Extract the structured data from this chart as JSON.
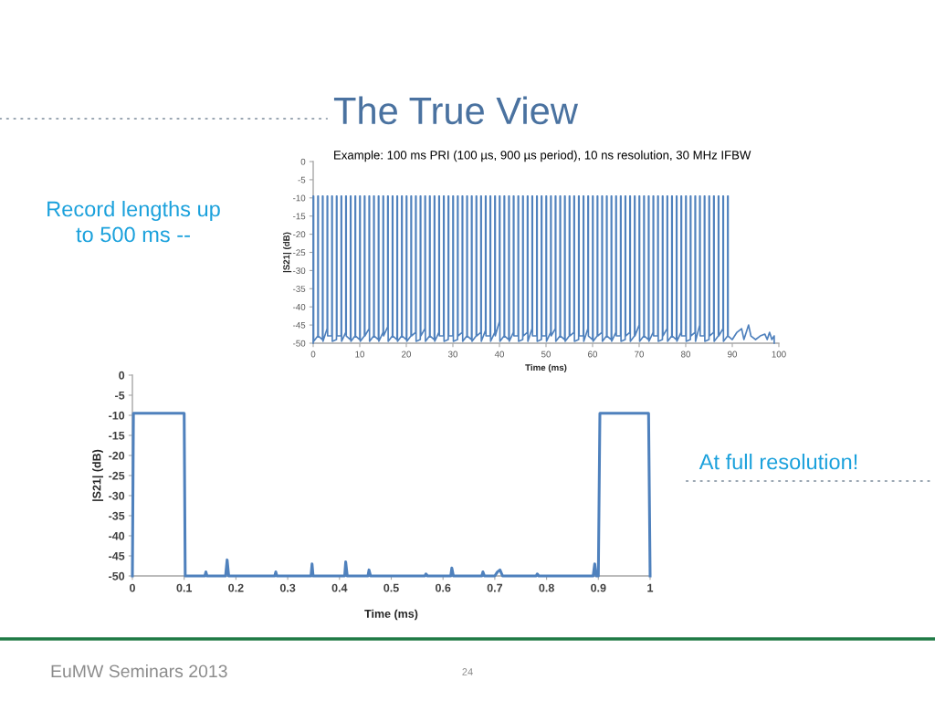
{
  "chart_data": [
    {
      "type": "line",
      "title": "The True View",
      "subtitle": "Example: 100 ms PRI (100 µs, 900 µs period), 10 ns resolution, 30 MHz IFBW",
      "xlabel": "Time (ms)",
      "ylabel": "|S21| (dB)",
      "annotations": [
        "Record lengths up\nto 500 ms --"
      ],
      "xlim": [
        0,
        100
      ],
      "xticks": [
        0,
        10,
        20,
        30,
        40,
        50,
        60,
        70,
        80,
        90,
        100
      ],
      "ylim": [
        -50,
        0
      ],
      "yticks": [
        0,
        -5,
        -10,
        -15,
        -20,
        -25,
        -30,
        -35,
        -40,
        -45,
        -50
      ],
      "grid": false,
      "marker": "none",
      "line_style": "solid",
      "series": [
        {
          "color": "#4f81bd",
          "x": [
            0,
            0,
            0.1,
            0.1,
            1,
            1,
            1.1,
            1.1,
            2,
            2,
            2.1,
            2.1,
            3,
            3,
            3.1,
            3.1,
            4,
            4,
            4.1,
            4.1,
            5,
            5,
            5.1,
            5.1,
            6,
            6,
            6.1,
            6.1,
            7,
            7,
            7.1,
            7.1,
            8,
            8,
            8.1,
            8.1,
            9,
            9,
            9.1,
            9.1,
            10,
            10,
            10.1,
            10.1,
            11,
            11,
            11.1,
            11.1,
            12,
            12,
            12.1,
            12.1,
            13,
            13,
            13.1,
            13.1,
            14,
            14,
            14.1,
            14.1,
            15,
            15,
            15.1,
            15.1,
            16,
            16,
            16.1,
            16.1,
            17,
            17,
            17.1,
            17.1,
            18,
            18,
            18.1,
            18.1,
            19,
            19,
            19.1,
            19.1,
            20,
            20,
            20.1,
            20.1,
            21,
            21,
            21.1,
            21.1,
            22,
            22,
            22.1,
            22.1,
            23,
            23,
            23.1,
            23.1,
            24,
            24,
            24.1,
            24.1,
            25,
            25,
            25.1,
            25.1,
            26,
            26,
            26.1,
            26.1,
            27,
            27,
            27.1,
            27.1,
            28,
            28,
            28.1,
            28.1,
            29,
            29,
            29.1,
            29.1,
            30,
            30,
            30.1,
            30.1,
            31,
            31,
            31.1,
            31.1,
            32,
            32,
            32.1,
            32.1,
            33,
            33,
            33.1,
            33.1,
            34,
            34,
            34.1,
            34.1,
            35,
            35,
            35.1,
            35.1,
            36,
            36,
            36.1,
            36.1,
            37,
            37,
            37.1,
            37.1,
            38,
            38,
            38.1,
            38.1,
            39,
            39,
            39.1,
            39.1,
            40,
            40,
            40.1,
            40.1,
            41,
            41,
            41.1,
            41.1,
            42,
            42,
            42.1,
            42.1,
            43,
            43,
            43.1,
            43.1,
            44,
            44,
            44.1,
            44.1,
            45,
            45,
            45.1,
            45.1,
            46,
            46,
            46.1,
            46.1,
            47,
            47,
            47.1,
            47.1,
            48,
            48,
            48.1,
            48.1,
            49,
            49,
            49.1,
            49.1,
            50,
            50,
            50.1,
            50.1,
            51,
            51,
            51.1,
            51.1,
            52,
            52,
            52.1,
            52.1,
            53,
            53,
            53.1,
            53.1,
            54,
            54,
            54.1,
            54.1,
            55,
            55,
            55.1,
            55.1,
            56,
            56,
            56.1,
            56.1,
            57,
            57,
            57.1,
            57.1,
            58,
            58,
            58.1,
            58.1,
            59,
            59,
            59.1,
            59.1,
            60,
            60,
            60.1,
            60.1,
            61,
            61,
            61.1,
            61.1,
            62,
            62,
            62.1,
            62.1,
            63,
            63,
            63.1,
            63.1,
            64,
            64,
            64.1,
            64.1,
            65,
            65,
            65.1,
            65.1,
            66,
            66,
            66.1,
            66.1,
            67,
            67,
            67.1,
            67.1,
            68,
            68,
            68.1,
            68.1,
            69,
            69,
            69.1,
            69.1,
            70,
            70,
            70.1,
            70.1,
            71,
            71,
            71.1,
            71.1,
            72,
            72,
            72.1,
            72.1,
            73,
            73,
            73.1,
            73.1,
            74,
            74,
            74.1,
            74.1,
            75,
            75,
            75.1,
            75.1,
            76,
            76,
            76.1,
            76.1,
            77,
            77,
            77.1,
            77.1,
            78,
            78,
            78.1,
            78.1,
            79,
            79,
            79.1,
            79.1,
            80,
            80,
            80.1,
            80.1,
            81,
            81,
            81.1,
            81.1,
            82,
            82,
            82.1,
            82.1,
            83,
            83,
            83.1,
            83.1,
            84,
            84,
            84.1,
            84.1,
            85,
            85,
            85.1,
            85.1,
            86,
            86,
            86.1,
            86.1,
            87,
            87,
            87.1,
            87.1,
            88,
            88,
            88.1,
            88.1,
            89,
            89,
            89.1,
            89.1,
            90,
            91,
            92,
            92.5,
            93.5,
            94,
            95,
            96,
            97,
            97.5,
            98,
            98.5,
            99,
            99
          ],
          "values": [
            -50,
            -9.5,
            -9.5,
            -49.5,
            -48,
            -9.5,
            -9.5,
            -48,
            -49,
            -9.5,
            -9.5,
            -49.5,
            -46,
            -9.5,
            -9.5,
            -48,
            -48,
            -9.5,
            -9.5,
            -49.5,
            -49,
            -9.5,
            -9.5,
            -48,
            -48,
            -9.5,
            -9.5,
            -49.5,
            -47,
            -9.5,
            -9.5,
            -48,
            -49,
            -9.5,
            -9.5,
            -49.5,
            -48,
            -9.5,
            -9.5,
            -48,
            -49,
            -9.5,
            -9.5,
            -49.5,
            -48,
            -9.5,
            -9.5,
            -48,
            -46,
            -9.5,
            -9.5,
            -49.5,
            -48,
            -9.5,
            -9.5,
            -48,
            -49,
            -9.5,
            -9.5,
            -49.5,
            -47,
            -9.5,
            -9.5,
            -48,
            -45.5,
            -9.5,
            -9.5,
            -49.5,
            -48,
            -9.5,
            -9.5,
            -48,
            -49,
            -9.5,
            -9.5,
            -49.5,
            -48,
            -9.5,
            -9.5,
            -48,
            -49,
            -9.5,
            -9.5,
            -49.5,
            -48,
            -9.5,
            -9.5,
            -48,
            -47,
            -9.5,
            -9.5,
            -49.5,
            -49,
            -9.5,
            -9.5,
            -48,
            -46,
            -9.5,
            -9.5,
            -49.5,
            -48,
            -9.5,
            -9.5,
            -48,
            -49,
            -9.5,
            -9.5,
            -49.5,
            -47,
            -9.5,
            -9.5,
            -48,
            -48,
            -9.5,
            -9.5,
            -49.5,
            -49,
            -9.5,
            -9.5,
            -48,
            -48,
            -9.5,
            -9.5,
            -49.5,
            -49,
            -9.5,
            -9.5,
            -48,
            -47,
            -9.5,
            -9.5,
            -49.5,
            -48,
            -9.5,
            -9.5,
            -48,
            -49,
            -9.5,
            -9.5,
            -49.5,
            -48,
            -9.5,
            -9.5,
            -48,
            -47,
            -9.5,
            -9.5,
            -49.5,
            -46.5,
            -9.5,
            -9.5,
            -48,
            -48,
            -9.5,
            -9.5,
            -49.5,
            -47,
            -9.5,
            -9.5,
            -48,
            -44,
            -9.5,
            -9.5,
            -49.5,
            -48,
            -9.5,
            -9.5,
            -48,
            -49,
            -9.5,
            -9.5,
            -49.5,
            -47,
            -9.5,
            -9.5,
            -48,
            -48,
            -9.5,
            -9.5,
            -49.5,
            -49,
            -9.5,
            -9.5,
            -48,
            -47,
            -9.5,
            -9.5,
            -49.5,
            -46,
            -9.5,
            -9.5,
            -48,
            -48,
            -9.5,
            -9.5,
            -49.5,
            -49,
            -9.5,
            -9.5,
            -48,
            -48,
            -9.5,
            -9.5,
            -49.5,
            -47,
            -9.5,
            -9.5,
            -48,
            -46,
            -9.5,
            -9.5,
            -49.5,
            -48,
            -9.5,
            -9.5,
            -48,
            -49,
            -9.5,
            -9.5,
            -49.5,
            -48,
            -9.5,
            -9.5,
            -48,
            -47,
            -9.5,
            -9.5,
            -49.5,
            -49,
            -9.5,
            -9.5,
            -48,
            -48,
            -9.5,
            -9.5,
            -49.5,
            -46,
            -9.5,
            -9.5,
            -48,
            -49,
            -9.5,
            -9.5,
            -49.5,
            -48,
            -9.5,
            -9.5,
            -48,
            -47,
            -9.5,
            -9.5,
            -49.5,
            -48,
            -9.5,
            -9.5,
            -48,
            -49,
            -9.5,
            -9.5,
            -49.5,
            -47,
            -9.5,
            -9.5,
            -48,
            -48,
            -9.5,
            -9.5,
            -49.5,
            -49,
            -9.5,
            -9.5,
            -48,
            -47,
            -9.5,
            -9.5,
            -49.5,
            -48,
            -9.5,
            -9.5,
            -48,
            -45,
            -9.5,
            -9.5,
            -49.5,
            -48,
            -9.5,
            -9.5,
            -48,
            -49,
            -9.5,
            -9.5,
            -49.5,
            -47,
            -9.5,
            -9.5,
            -48,
            -48,
            -9.5,
            -9.5,
            -49.5,
            -49,
            -9.5,
            -9.5,
            -48,
            -46,
            -9.5,
            -9.5,
            -49.5,
            -48,
            -9.5,
            -9.5,
            -48,
            -49,
            -9.5,
            -9.5,
            -49.5,
            -47,
            -9.5,
            -9.5,
            -48,
            -48,
            -9.5,
            -9.5,
            -49.5,
            -49,
            -9.5,
            -9.5,
            -48,
            -47,
            -9.5,
            -9.5,
            -49.5,
            -45,
            -9.5,
            -9.5,
            -48,
            -48,
            -9.5,
            -9.5,
            -49.5,
            -49,
            -9.5,
            -9.5,
            -48,
            -47,
            -9.5,
            -9.5,
            -49.5,
            -48,
            -9.5,
            -9.5,
            -48,
            -46,
            -9.5,
            -9.5,
            -49.5,
            -48,
            -9.5,
            -9.5,
            -48,
            -49,
            -47,
            -46,
            -49,
            -45,
            -48,
            -49,
            -48,
            -47.5,
            -49,
            -47,
            -49,
            -48,
            -50
          ]
        }
      ]
    },
    {
      "type": "line",
      "xlabel": "Time (ms)",
      "ylabel": "|S21| (dB)",
      "annotations": [
        "At full resolution!",
        "EuMW Seminars 2013",
        "24"
      ],
      "xlim": [
        0,
        1
      ],
      "xticks": [
        0,
        0.1,
        0.2,
        0.3,
        0.4,
        0.5,
        0.6,
        0.7,
        0.8,
        0.9,
        1
      ],
      "ylim": [
        -50,
        0
      ],
      "yticks": [
        0,
        -5,
        -10,
        -15,
        -20,
        -25,
        -30,
        -35,
        -40,
        -45,
        -50
      ],
      "grid": false,
      "marker": "none",
      "line_style": "solid",
      "series": [
        {
          "color": "#4f81bd",
          "x": [
            0,
            0.002,
            0.1,
            0.102,
            0.14,
            0.142,
            0.144,
            0.18,
            0.183,
            0.186,
            0.275,
            0.277,
            0.279,
            0.345,
            0.347,
            0.349,
            0.41,
            0.412,
            0.415,
            0.455,
            0.457,
            0.46,
            0.565,
            0.567,
            0.57,
            0.615,
            0.617,
            0.62,
            0.675,
            0.677,
            0.68,
            0.7,
            0.705,
            0.71,
            0.715,
            0.78,
            0.782,
            0.785,
            0.89,
            0.893,
            0.896,
            0.9,
            0.903,
            0.997,
            1
          ],
          "values": [
            -50,
            -9.5,
            -9.5,
            -50,
            -50,
            -49,
            -50,
            -50,
            -46,
            -50,
            -50,
            -49,
            -50,
            -50,
            -47,
            -50,
            -50,
            -46.5,
            -50,
            -50,
            -48.5,
            -50,
            -50,
            -49.5,
            -50,
            -50,
            -48,
            -50,
            -50,
            -49,
            -50,
            -50,
            -49,
            -48.5,
            -50,
            -50,
            -49.5,
            -50,
            -50,
            -47,
            -50,
            -50,
            -9.5,
            -9.5,
            -50
          ]
        }
      ]
    }
  ]
}
